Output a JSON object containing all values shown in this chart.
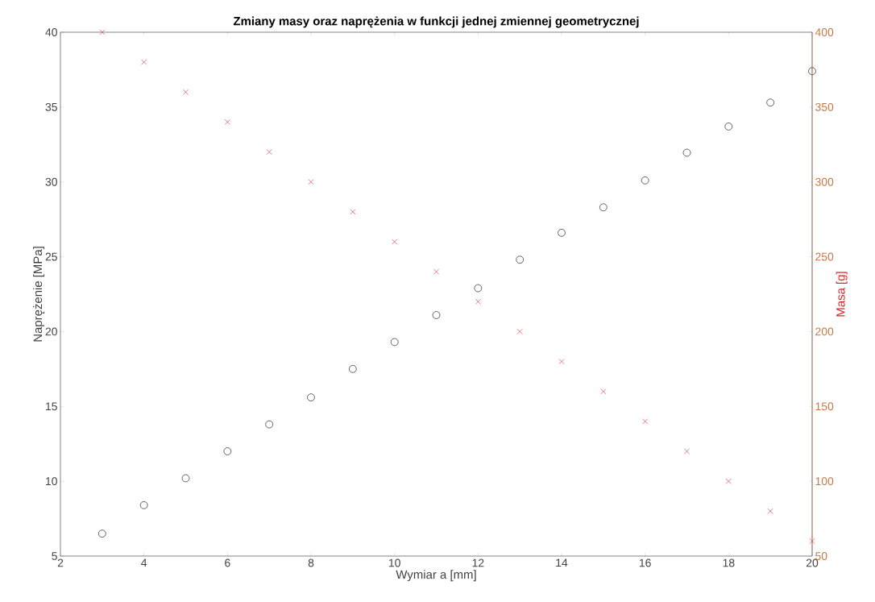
{
  "chart_data": {
    "type": "scatter",
    "title": "Zmiany masy oraz naprężenia w funkcji jednej zmiennej geometrycznej",
    "xlabel": "Wymiar a [mm]",
    "ylabel": "Naprężenie [MPa]",
    "y2label": "Masa [g]",
    "x": [
      3,
      4,
      5,
      6,
      7,
      8,
      9,
      10,
      11,
      12,
      13,
      14,
      15,
      16,
      17,
      18,
      19,
      20
    ],
    "series": [
      {
        "color": "#000000",
        "marker": "circle",
        "values": [
          6.5,
          8.4,
          10.2,
          12.0,
          13.8,
          15.6,
          17.5,
          19.3,
          21.1,
          22.9,
          24.8,
          26.6,
          28.3,
          30.1,
          31.95,
          33.7,
          35.3,
          37.4
        ]
      },
      {
        "color": "#d62728",
        "marker": "cross",
        "axis": "y2",
        "values": [
          400,
          380,
          360,
          340,
          320,
          300,
          280,
          260,
          240,
          220,
          200,
          180,
          160,
          140,
          120,
          100,
          80,
          60
        ]
      }
    ],
    "xlim": [
      2,
      20
    ],
    "xticks": [
      2,
      4,
      6,
      8,
      10,
      12,
      14,
      16,
      18,
      20
    ],
    "ylim": [
      5,
      40
    ],
    "yticks": [
      5,
      10,
      15,
      20,
      25,
      30,
      35,
      40
    ],
    "y2lim": [
      50,
      400
    ],
    "y2ticks": [
      50,
      100,
      150,
      200,
      250,
      300,
      350,
      400
    ],
    "grid": false
  }
}
